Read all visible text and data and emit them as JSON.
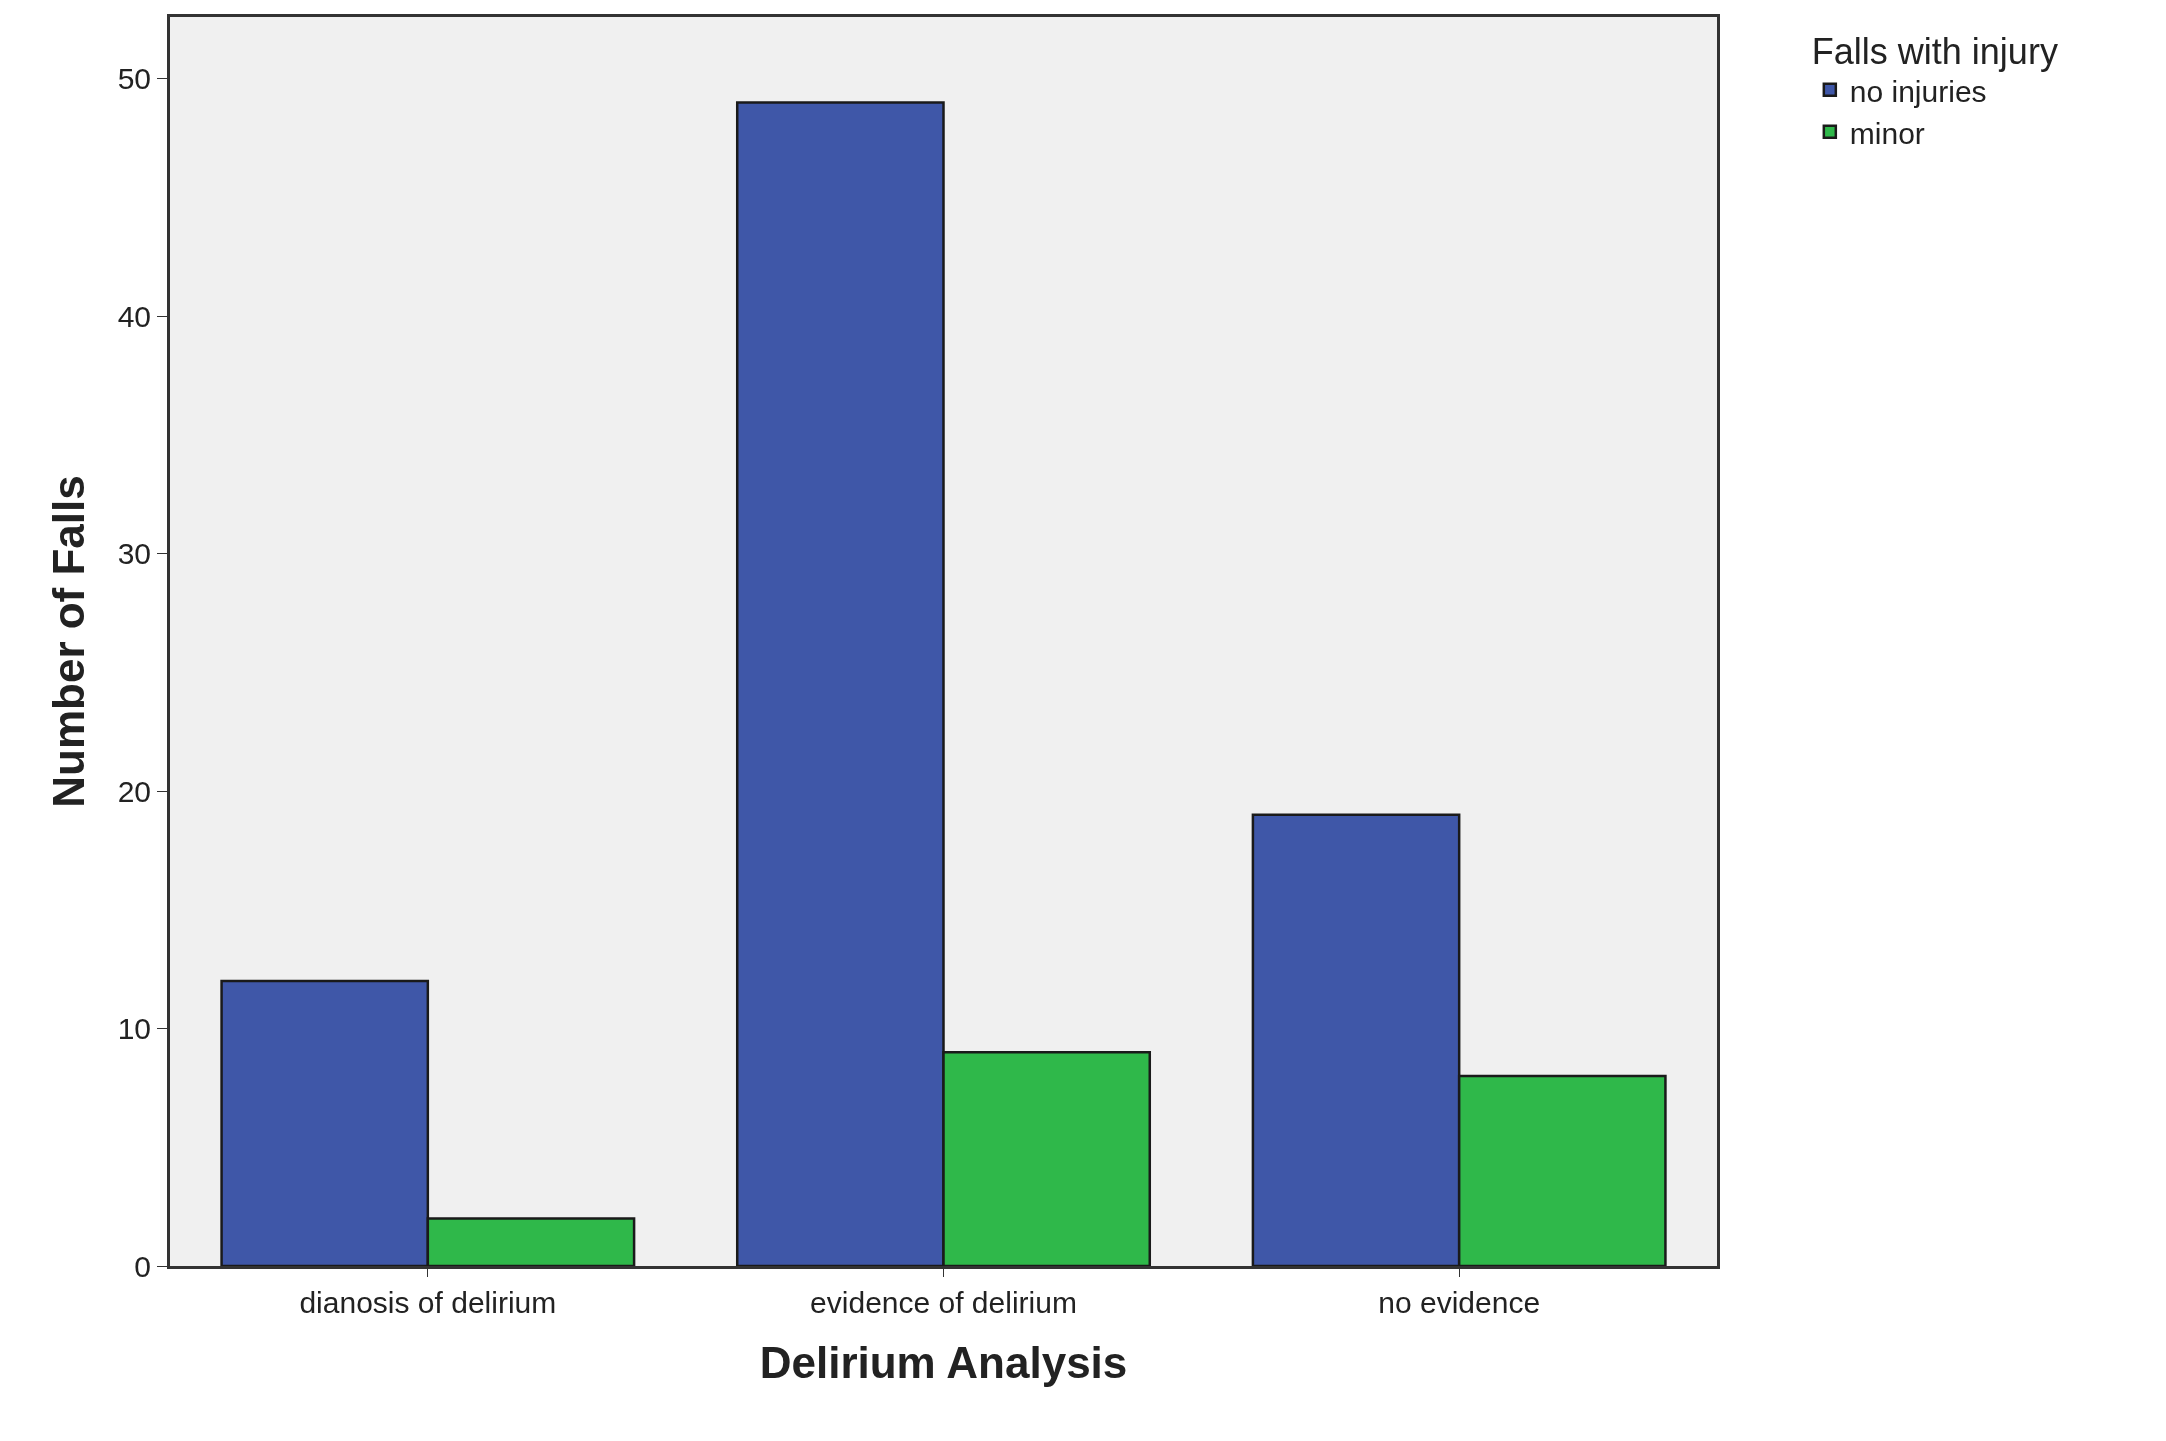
{
  "chart_data": {
    "type": "bar",
    "xlabel": "Delirium Analysis",
    "ylabel": "Number of Falls",
    "legend_title": "Falls with injury",
    "categories": [
      "dianosis of delirium",
      "evidence of delirium",
      "no evidence"
    ],
    "series": [
      {
        "name": "no injuries",
        "color": "#3f57a8",
        "values": [
          12,
          49,
          19
        ]
      },
      {
        "name": "minor",
        "color": "#2fb84a",
        "values": [
          2,
          9,
          8
        ]
      }
    ],
    "ylim": [
      0,
      52.6
    ],
    "yticks": [
      0,
      10,
      20,
      30,
      40,
      50
    ],
    "grid": false,
    "legend": "top right"
  }
}
